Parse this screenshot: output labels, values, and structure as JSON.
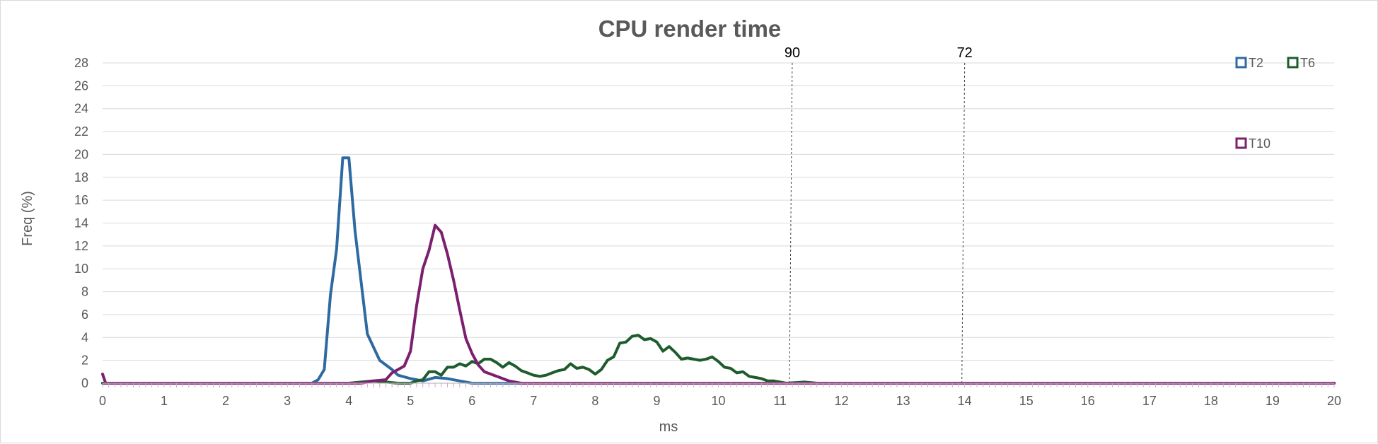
{
  "chart_data": {
    "type": "line",
    "title": "CPU render time",
    "xlabel": "ms",
    "ylabel": "Freq (%)",
    "xlim": [
      0,
      20
    ],
    "ylim": [
      0,
      28
    ],
    "x_ticks": [
      "0",
      "1",
      "2",
      "3",
      "4",
      "5",
      "6",
      "7",
      "8",
      "9",
      "10",
      "11",
      "12",
      "13",
      "14",
      "15",
      "16",
      "17",
      "18",
      "19",
      "20"
    ],
    "y_ticks": [
      "0",
      "2",
      "4",
      "6",
      "8",
      "10",
      "12",
      "14",
      "16",
      "18",
      "20",
      "22",
      "24",
      "26",
      "28"
    ],
    "grid": true,
    "legend_position": "top-right",
    "reference_lines": [
      {
        "label": "90",
        "x": 11.2
      },
      {
        "label": "72",
        "x": 14.0
      }
    ],
    "series": [
      {
        "name": "T2",
        "color": "#2e6aa1",
        "points": [
          [
            0,
            0
          ],
          [
            3.4,
            0
          ],
          [
            3.5,
            0.3
          ],
          [
            3.6,
            1.2
          ],
          [
            3.7,
            7.7
          ],
          [
            3.8,
            11.7
          ],
          [
            3.9,
            19.7
          ],
          [
            4.0,
            19.7
          ],
          [
            4.1,
            13.3
          ],
          [
            4.2,
            8.8
          ],
          [
            4.3,
            4.3
          ],
          [
            4.5,
            2.0
          ],
          [
            4.7,
            1.2
          ],
          [
            4.8,
            0.7
          ],
          [
            5.0,
            0.4
          ],
          [
            5.2,
            0.2
          ],
          [
            5.4,
            0.5
          ],
          [
            5.6,
            0.4
          ],
          [
            5.8,
            0.2
          ],
          [
            6.0,
            0
          ],
          [
            20,
            0
          ]
        ]
      },
      {
        "name": "T6",
        "color": "#1e5c2c",
        "points": [
          [
            0,
            0
          ],
          [
            4.0,
            0
          ],
          [
            4.4,
            0.2
          ],
          [
            4.6,
            0.1
          ],
          [
            4.8,
            0
          ],
          [
            5.0,
            0
          ],
          [
            5.1,
            0.2
          ],
          [
            5.2,
            0.3
          ],
          [
            5.3,
            1.0
          ],
          [
            5.4,
            1.0
          ],
          [
            5.5,
            0.7
          ],
          [
            5.6,
            1.4
          ],
          [
            5.7,
            1.4
          ],
          [
            5.8,
            1.7
          ],
          [
            5.9,
            1.5
          ],
          [
            6.0,
            1.9
          ],
          [
            6.1,
            1.7
          ],
          [
            6.2,
            2.1
          ],
          [
            6.3,
            2.1
          ],
          [
            6.4,
            1.8
          ],
          [
            6.5,
            1.4
          ],
          [
            6.6,
            1.8
          ],
          [
            6.7,
            1.5
          ],
          [
            6.8,
            1.1
          ],
          [
            6.9,
            0.9
          ],
          [
            7.0,
            0.7
          ],
          [
            7.1,
            0.6
          ],
          [
            7.2,
            0.7
          ],
          [
            7.3,
            0.9
          ],
          [
            7.4,
            1.1
          ],
          [
            7.5,
            1.2
          ],
          [
            7.6,
            1.7
          ],
          [
            7.7,
            1.3
          ],
          [
            7.8,
            1.4
          ],
          [
            7.9,
            1.2
          ],
          [
            8.0,
            0.8
          ],
          [
            8.1,
            1.2
          ],
          [
            8.2,
            2.0
          ],
          [
            8.3,
            2.3
          ],
          [
            8.4,
            3.5
          ],
          [
            8.5,
            3.6
          ],
          [
            8.6,
            4.1
          ],
          [
            8.7,
            4.2
          ],
          [
            8.8,
            3.8
          ],
          [
            8.9,
            3.9
          ],
          [
            9.0,
            3.6
          ],
          [
            9.1,
            2.8
          ],
          [
            9.2,
            3.2
          ],
          [
            9.3,
            2.7
          ],
          [
            9.4,
            2.1
          ],
          [
            9.5,
            2.2
          ],
          [
            9.6,
            2.1
          ],
          [
            9.7,
            2.0
          ],
          [
            9.8,
            2.1
          ],
          [
            9.9,
            2.3
          ],
          [
            10.0,
            1.9
          ],
          [
            10.1,
            1.4
          ],
          [
            10.2,
            1.3
          ],
          [
            10.3,
            0.9
          ],
          [
            10.4,
            1.0
          ],
          [
            10.5,
            0.6
          ],
          [
            10.6,
            0.5
          ],
          [
            10.7,
            0.4
          ],
          [
            10.8,
            0.2
          ],
          [
            10.9,
            0.2
          ],
          [
            11.0,
            0.1
          ],
          [
            11.1,
            0
          ],
          [
            11.4,
            0.1
          ],
          [
            11.6,
            0
          ],
          [
            20,
            0
          ]
        ]
      },
      {
        "name": "T10",
        "color": "#7b1f6e",
        "points": [
          [
            0,
            0.8
          ],
          [
            0.05,
            0
          ],
          [
            4.2,
            0
          ],
          [
            4.4,
            0.2
          ],
          [
            4.6,
            0.3
          ],
          [
            4.7,
            0.9
          ],
          [
            4.8,
            1.2
          ],
          [
            4.9,
            1.5
          ],
          [
            5.0,
            2.8
          ],
          [
            5.1,
            6.8
          ],
          [
            5.2,
            10.0
          ],
          [
            5.3,
            11.6
          ],
          [
            5.4,
            13.8
          ],
          [
            5.5,
            13.2
          ],
          [
            5.6,
            11.3
          ],
          [
            5.7,
            9.0
          ],
          [
            5.8,
            6.4
          ],
          [
            5.9,
            3.9
          ],
          [
            6.0,
            2.6
          ],
          [
            6.1,
            1.6
          ],
          [
            6.2,
            1.0
          ],
          [
            6.4,
            0.6
          ],
          [
            6.6,
            0.2
          ],
          [
            6.8,
            0
          ],
          [
            20,
            0
          ]
        ]
      }
    ]
  }
}
